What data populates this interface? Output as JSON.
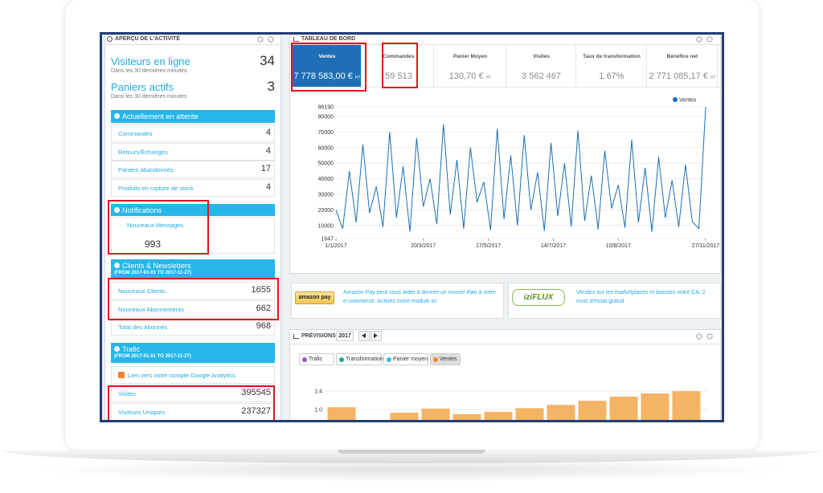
{
  "activity": {
    "title": "APERÇU DE L'ACTIVITÉ",
    "online": {
      "label": "Visiteurs en ligne",
      "value": 34,
      "note": "Dans les 30 dernières minutes"
    },
    "carts": {
      "label": "Paniers actifs",
      "value": 3,
      "note": "Dans les 30 dernières minutes"
    },
    "pending": {
      "title": "Actuellement en attente",
      "rows": [
        [
          "Commandes",
          4
        ],
        [
          "Retours/Échanges",
          4
        ],
        [
          "Paniers abandonnés",
          17
        ],
        [
          "Produits en rupture de stock",
          4
        ]
      ]
    },
    "notifications": {
      "title": "Notifications",
      "label": "Nouveaux Messages",
      "value": 993
    },
    "clients": {
      "title": "Clients & Newsletters",
      "range": "(FROM 2017-01-01 TO 2017-11-27)",
      "rows": [
        [
          "Nouveaux Clients",
          1655
        ],
        [
          "Nouveaux Abonnements",
          662
        ],
        [
          "Total des Abonnés",
          968
        ]
      ]
    },
    "traffic": {
      "title": "Trafic",
      "range": "(FROM 2017-01-01 TO 2017-11-27)",
      "link": "Lien vers votre compte Google Analytics",
      "rows": [
        [
          "Visites",
          395545
        ],
        [
          "Visiteurs Uniques",
          237327
        ]
      ]
    }
  },
  "dashboard": {
    "title": "TABLEAU DE BORD",
    "kpis": [
      {
        "label": "Ventes",
        "value": "7 778 583,00 €",
        "unit": "HT"
      },
      {
        "label": "Commandes",
        "value": "59 513"
      },
      {
        "label": "Panier Moyen",
        "value": "130,70 €",
        "unit": "HT"
      },
      {
        "label": "Visites",
        "value": "3 562 467"
      },
      {
        "label": "Taux de transformation",
        "value": "1.67%"
      },
      {
        "label": "Bénéfice net",
        "value": "2 771 085,17 €",
        "unit": "HT"
      }
    ],
    "chart_data": {
      "type": "line",
      "grid": true,
      "x": [
        0,
        6,
        12,
        18,
        24,
        30,
        36,
        42,
        48,
        54,
        60,
        66,
        72,
        78,
        84,
        90,
        96,
        102,
        108,
        114,
        120,
        126,
        132,
        138,
        144,
        150,
        156,
        162,
        168,
        174,
        180,
        186,
        192,
        198,
        204,
        210,
        216,
        222,
        228,
        234,
        240,
        246,
        252,
        258,
        264,
        270,
        276,
        282,
        288,
        294,
        300,
        306,
        312,
        318,
        324,
        330
      ],
      "xlim": [
        0,
        330
      ],
      "xticks": [
        {
          "value": 0,
          "label": "1/1/2017"
        },
        {
          "value": 78,
          "label": "20/3/2017"
        },
        {
          "value": 136,
          "label": "17/5/2017"
        },
        {
          "value": 194,
          "label": "14/7/2017"
        },
        {
          "value": 252,
          "label": "10/9/2017"
        },
        {
          "value": 330,
          "label": "27/11/2017"
        }
      ],
      "ylim": [
        1647,
        86190
      ],
      "yticks": [
        1647,
        10000,
        20000,
        30000,
        40000,
        50000,
        60000,
        70000,
        80000,
        86190
      ],
      "series": [
        {
          "name": "Ventes",
          "color": "#1a6fb5",
          "values": [
            20000,
            8000,
            45000,
            12000,
            62000,
            18000,
            35000,
            9000,
            70000,
            15000,
            48000,
            6000,
            66000,
            22000,
            40000,
            11000,
            75000,
            17000,
            52000,
            8000,
            60000,
            25000,
            38000,
            7000,
            72000,
            14000,
            55000,
            10000,
            68000,
            20000,
            44000,
            6500,
            63000,
            16000,
            50000,
            9500,
            71000,
            13000,
            42000,
            7500,
            58000,
            21000,
            36000,
            8500,
            65000,
            12000,
            47000,
            6000,
            54000,
            15000,
            39000,
            9000,
            49000,
            12500,
            8000,
            86190
          ]
        }
      ]
    }
  },
  "promos": [
    {
      "logo": "amazon pay",
      "text": "Amazon Pay peut vous aider à donner un nouvel élan à votre e-commerce. Activez notre module ici"
    },
    {
      "logo": "iziFLUX",
      "text": "Vendez sur les marketplaces et boostez votre CA, 2 mois d'essai gratuit"
    }
  ],
  "forecast": {
    "title": "PRÉVISIONS",
    "year": 2017,
    "buttons": [
      "Trafic",
      "Transformation",
      "Panier moyen",
      "Ventes"
    ],
    "chart_data": {
      "type": "bar",
      "color": "#f5b366",
      "grid": true,
      "ylim": [
        0.77,
        1.49
      ],
      "yticks": [
        {
          "value": 1,
          "label": "1.0"
        },
        1.4
      ],
      "values": [
        1.05,
        null,
        0.93,
        1.02,
        0.9,
        0.95,
        1.03,
        1.1,
        1.19,
        1.28,
        1.35,
        1.4
      ]
    }
  }
}
